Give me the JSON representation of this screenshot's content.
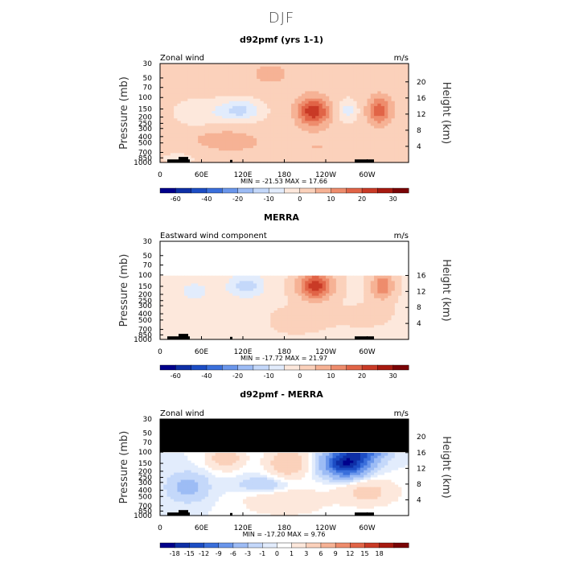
{
  "suptitle": "DJF",
  "colors": {
    "div_panels": [
      "#00008b",
      "#0e2fa6",
      "#1c4dc4",
      "#3a6fdb",
      "#6a96eb",
      "#9dbcf5",
      "#c4d8fa",
      "#e2ecfc",
      "#fde8dc",
      "#fbd1bb",
      "#f6b295",
      "#ee8c6c",
      "#e16447",
      "#c93a26",
      "#a71a10",
      "#7a0406"
    ],
    "div_diff": [
      "#00008b",
      "#0e2fa6",
      "#1c4dc4",
      "#3a6fdb",
      "#6a96eb",
      "#9dbcf5",
      "#c4d8fa",
      "#e2ecfc",
      "#ffffff",
      "#fde8dc",
      "#fbd1bb",
      "#f6b295",
      "#ee8c6c",
      "#e16447",
      "#c93a26",
      "#a71a10",
      "#7a0406"
    ],
    "mask": "#000000"
  },
  "chart_data": [
    {
      "type": "heatmap",
      "title": "d92pmf (yrs 1-1)",
      "left_label": "Zonal wind",
      "units": "m/s",
      "ylabel": "Pressure (mb)",
      "y2label": "Height (km)",
      "xticks": [
        "0",
        "60E",
        "120E",
        "180",
        "120W",
        "60W"
      ],
      "xlim": [
        0,
        360
      ],
      "ylim": [
        1000,
        30
      ],
      "pressure_ticks": [
        "30",
        "50",
        "70",
        "100",
        "150",
        "200",
        "250",
        "300",
        "400",
        "500",
        "700",
        "850",
        "1000"
      ],
      "height_ticks": [
        "20",
        "16",
        "12",
        "8",
        "4"
      ],
      "stats": "MIN = -21.53   MAX =  17.66",
      "colorbar_levels": [
        "-60",
        "-40",
        "-20",
        "-10",
        "0",
        "10",
        "20",
        "30"
      ],
      "min": -21.53,
      "max": 17.66
    },
    {
      "type": "heatmap",
      "title": "MERRA",
      "left_label": "Eastward wind component",
      "units": "m/s",
      "ylabel": "Pressure (mb)",
      "y2label": "Height (km)",
      "xticks": [
        "0",
        "60E",
        "120E",
        "180",
        "120W",
        "60W"
      ],
      "xlim": [
        0,
        360
      ],
      "ylim": [
        1000,
        30
      ],
      "pressure_ticks": [
        "30",
        "50",
        "70",
        "100",
        "150",
        "200",
        "250",
        "300",
        "400",
        "500",
        "700",
        "850",
        "1000"
      ],
      "height_ticks": [
        "16",
        "12",
        "8",
        "4"
      ],
      "stats": "MIN = -17.72   MAX =  21.97",
      "colorbar_levels": [
        "-60",
        "-40",
        "-20",
        "-10",
        "0",
        "10",
        "20",
        "30"
      ],
      "min": -17.72,
      "max": 21.97,
      "data_top_pressure": 100
    },
    {
      "type": "heatmap",
      "title": "d92pmf - MERRA",
      "left_label": "Zonal wind",
      "units": "m/s",
      "ylabel": "Pressure (mb)",
      "y2label": "Height (km)",
      "xticks": [
        "0",
        "60E",
        "120E",
        "180",
        "120W",
        "60W"
      ],
      "xlim": [
        0,
        360
      ],
      "ylim": [
        1000,
        30
      ],
      "pressure_ticks": [
        "30",
        "50",
        "70",
        "100",
        "150",
        "200",
        "250",
        "300",
        "400",
        "500",
        "700",
        "850",
        "1000"
      ],
      "height_ticks": [
        "20",
        "16",
        "12",
        "8",
        "4"
      ],
      "stats": "MIN = -17.20   MAX =    9.76",
      "colorbar_levels": [
        "-18",
        "-15",
        "-12",
        "-9",
        "-6",
        "-3",
        "-1",
        "0",
        "1",
        "3",
        "6",
        "9",
        "12",
        "15",
        "18"
      ],
      "min": -17.2,
      "max": 9.76,
      "data_top_pressure": 100
    }
  ]
}
